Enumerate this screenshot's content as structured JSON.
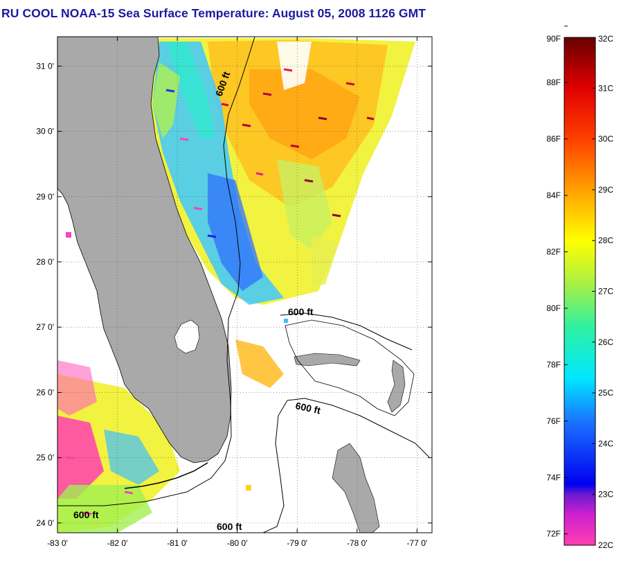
{
  "title": "RU COOL  NOAA-15  Sea Surface Temperature:  August 05, 2008 1126 GMT",
  "map": {
    "lon_range": [
      -83,
      -76.75
    ],
    "lat_range": [
      23.85,
      31.45
    ],
    "lat_ticks": [
      {
        "value": 31,
        "label": "31 0'"
      },
      {
        "value": 30,
        "label": "30 0'"
      },
      {
        "value": 29,
        "label": "29 0'"
      },
      {
        "value": 28,
        "label": "28 0'"
      },
      {
        "value": 27,
        "label": "27 0'"
      },
      {
        "value": 26,
        "label": "26 0'"
      },
      {
        "value": 25,
        "label": "25 0'"
      },
      {
        "value": 24,
        "label": "24 0'"
      }
    ],
    "lon_ticks": [
      {
        "value": -83,
        "label": "-83 0'"
      },
      {
        "value": -82,
        "label": "-82 0'"
      },
      {
        "value": -81,
        "label": "-81 0'"
      },
      {
        "value": -80,
        "label": "-80 0'"
      },
      {
        "value": -79,
        "label": "-79 0'"
      },
      {
        "value": -78,
        "label": "-78 0'"
      },
      {
        "value": -77,
        "label": "-77 0'"
      }
    ],
    "contour_labels": [
      "600 ft",
      "600 ft",
      "600 ft",
      "600 ft",
      "600 ft"
    ],
    "colors": {
      "land": "#a9a9a9",
      "ocean": "#ffffff",
      "coast": "#000000"
    }
  },
  "colorbar": {
    "fahrenheit_labels": [
      "90F",
      "88F",
      "86F",
      "84F",
      "82F",
      "80F",
      "78F",
      "76F",
      "74F",
      "72F"
    ],
    "celsius_labels": [
      "32C",
      "31C",
      "30C",
      "29C",
      "28C",
      "27C",
      "26C",
      "25C",
      "24C",
      "23C",
      "22C"
    ],
    "celsius_range": [
      22,
      32
    ]
  }
}
